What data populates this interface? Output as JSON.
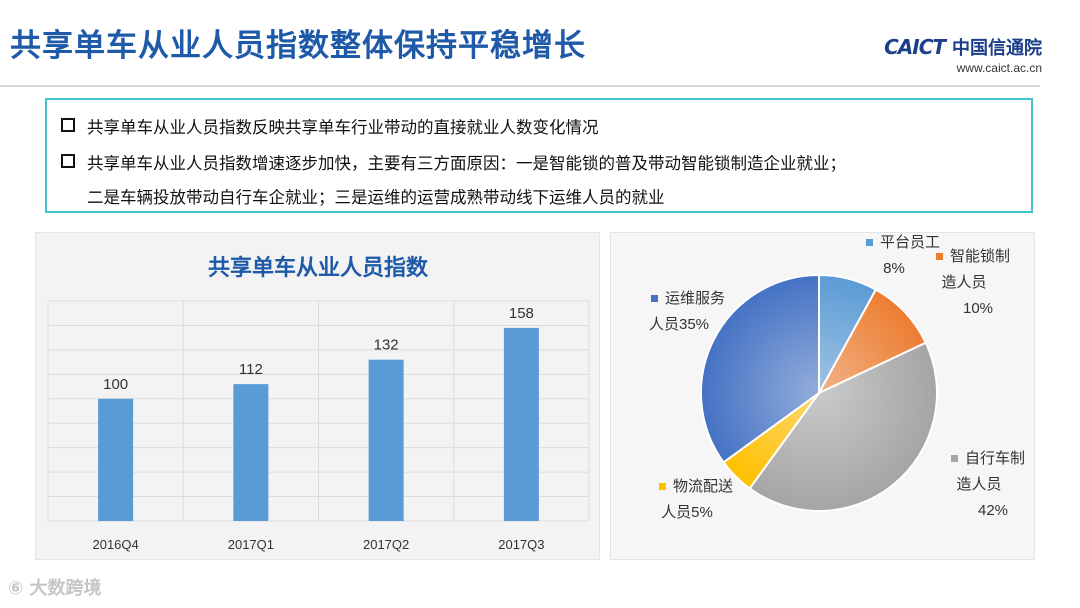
{
  "title": "共享单车从业人员指数整体保持平稳增长",
  "logo": {
    "caict": "CAICT",
    "name": "中国信通院",
    "url": "www.caict.ac.cn"
  },
  "bullets": {
    "b1": "共享单车从业人员指数反映共享单车行业带动的直接就业人数变化情况",
    "b2_line1": "共享单车从业人员指数增速逐步加快，主要有三方面原因：一是智能锁的普及带动智能锁制造企业就业；",
    "b2_line2": "二是车辆投放带动自行车企就业；三是运维的运营成熟带动线下运维人员的就业"
  },
  "chart_data": [
    {
      "type": "bar",
      "title": "共享单车从业人员指数",
      "categories": [
        "2016Q4",
        "2017Q1",
        "2017Q2",
        "2017Q3"
      ],
      "values": [
        100,
        112,
        132,
        158
      ],
      "ylim": [
        0,
        180
      ],
      "grid": true,
      "color": "#5b9bd5"
    },
    {
      "type": "pie",
      "slices": [
        {
          "label_line1": "平台员工",
          "label_line2": "8%",
          "value": 8,
          "color": "#5b9bd5"
        },
        {
          "label_line1": "智能锁制",
          "label_line2": "造人员",
          "label_line3": "10%",
          "value": 10,
          "color": "#ed7d31"
        },
        {
          "label_line1": "自行车制",
          "label_line2": "造人员",
          "label_line3": "42%",
          "value": 42,
          "color": "#a5a5a5"
        },
        {
          "label_line1": "物流配送",
          "label_line2": "人员5%",
          "value": 5,
          "color": "#ffc000"
        },
        {
          "label_line1": "运维服务",
          "label_line2": "人员35%",
          "value": 35,
          "color": "#4472c4"
        }
      ]
    }
  ],
  "footer": "大数跨境"
}
